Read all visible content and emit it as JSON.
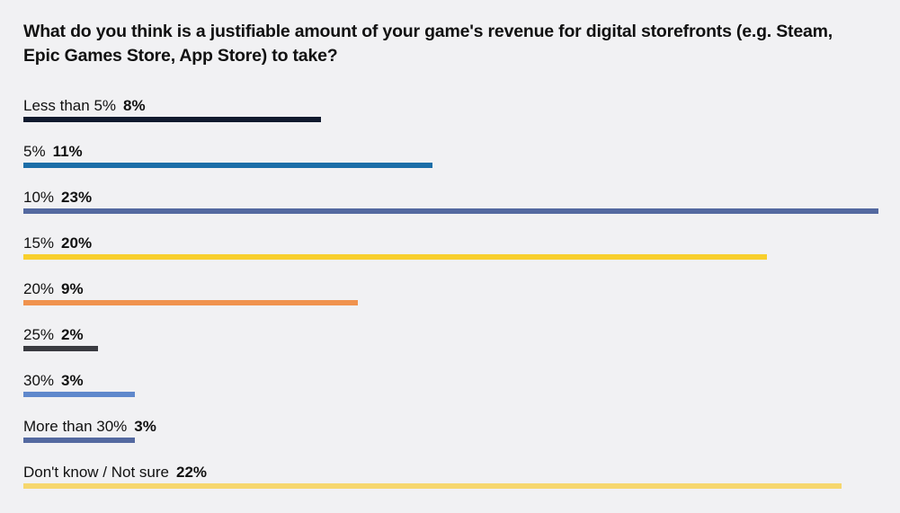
{
  "chart_data": {
    "type": "bar",
    "orientation": "horizontal",
    "title": "What do you think is a justifiable amount of your game's revenue for digital storefronts (e.g. Steam, Epic Games Store, App Store) to take?",
    "categories": [
      "Less than 5%",
      "5%",
      "10%",
      "15%",
      "20%",
      "25%",
      "30%",
      "More than 30%",
      "Don't know / Not sure"
    ],
    "values": [
      8,
      11,
      23,
      20,
      9,
      2,
      3,
      3,
      22
    ],
    "value_labels": [
      "8%",
      "11%",
      "23%",
      "20%",
      "9%",
      "2%",
      "3%",
      "3%",
      "22%"
    ],
    "colors": [
      "#111a2e",
      "#1b6ea8",
      "#5469a0",
      "#f8cf2c",
      "#f0934e",
      "#3a3b40",
      "#5f88cc",
      "#5469a0",
      "#f6d76e"
    ],
    "xlim": [
      0,
      23
    ],
    "grid": false,
    "legend": "none"
  }
}
